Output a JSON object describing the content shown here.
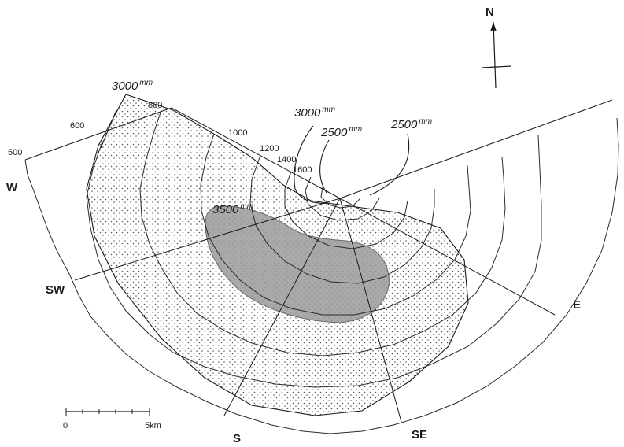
{
  "map": {
    "north_label": "N",
    "directions": {
      "w": "W",
      "sw": "SW",
      "s": "S",
      "se": "SE",
      "e": "E"
    },
    "elevation_labels": [
      "500",
      "600",
      "800",
      "1000",
      "1200",
      "1400",
      "1600"
    ],
    "rainfall": {
      "left_3000": {
        "value": "3000",
        "unit": "mm"
      },
      "top_3000": {
        "value": "3000",
        "unit": "mm"
      },
      "top_2500": {
        "value": "2500",
        "unit": "mm"
      },
      "right_2500": {
        "value": "2500",
        "unit": "mm"
      },
      "center_3500": {
        "value": "3500",
        "unit": "mm"
      }
    },
    "scale": {
      "start": "0",
      "end": "5km"
    },
    "colors": {
      "ink": "#1a1a1a",
      "stipple": "#555555",
      "max_zone": "#9a9a9a"
    }
  }
}
